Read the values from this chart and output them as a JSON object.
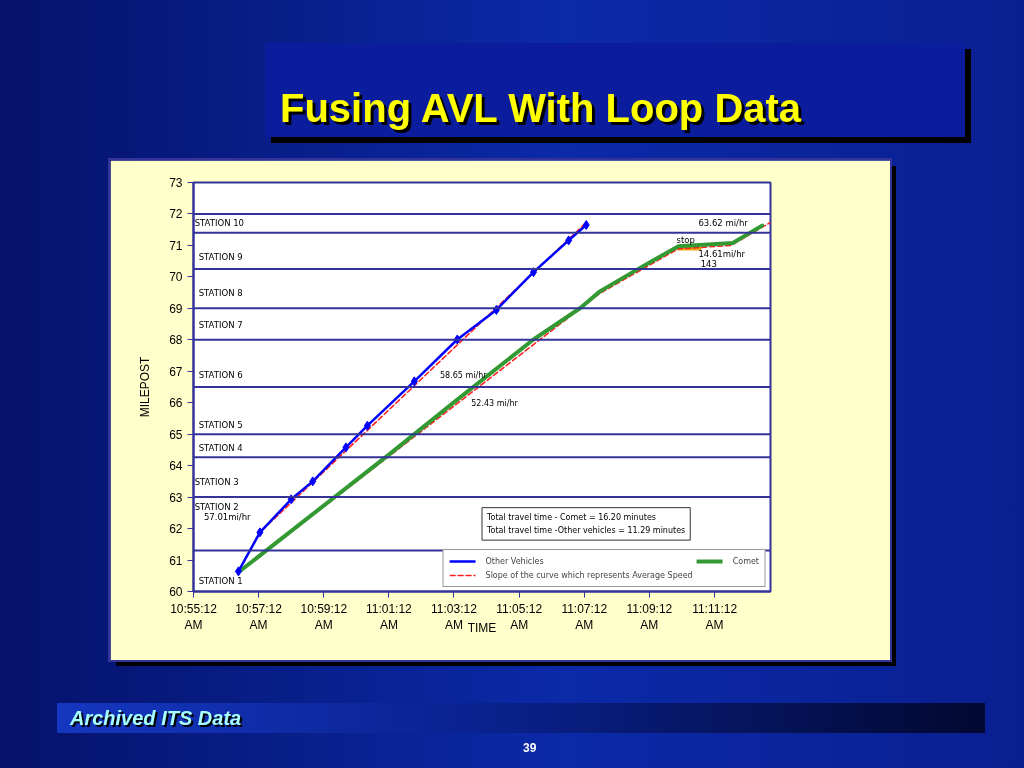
{
  "chart_data": {
    "type": "line",
    "title": "Fusing AVL With Loop Data",
    "xlabel": "TIME",
    "ylabel": "MILEPOST",
    "xlim": [
      10.92,
      11.2153
    ],
    "ylim": [
      60,
      73
    ],
    "xticks": [
      {
        "value": 10.92,
        "label": "10:55:12 AM"
      },
      {
        "value": 10.9533,
        "label": "10:57:12 AM"
      },
      {
        "value": 10.9867,
        "label": "10:59:12 AM"
      },
      {
        "value": 11.02,
        "label": "11:01:12 AM"
      },
      {
        "value": 11.0533,
        "label": "11:03:12 AM"
      },
      {
        "value": 11.0867,
        "label": "11:05:12 AM"
      },
      {
        "value": 11.12,
        "label": "11:07:12 AM"
      },
      {
        "value": 11.1533,
        "label": "11:09:12 AM"
      },
      {
        "value": 11.1867,
        "label": "11:11:12 AM"
      }
    ],
    "yticks": [
      60,
      61,
      62,
      63,
      64,
      65,
      66,
      67,
      68,
      69,
      70,
      71,
      72,
      73
    ],
    "legend": "bottom right",
    "series": [
      {
        "name": "Other Vehicles",
        "color": "#0000ff",
        "marker": "diamond",
        "x": [
          10.943,
          10.954,
          10.97,
          10.981,
          10.998,
          11.009,
          11.033,
          11.055,
          11.075,
          11.094,
          11.112,
          11.121
        ],
        "values": [
          60.64,
          61.88,
          62.93,
          63.5,
          64.58,
          65.27,
          66.68,
          68.01,
          68.95,
          70.15,
          71.16,
          71.65
        ]
      },
      {
        "name": "Slope of the curve which represents Average Speed",
        "color": "#ff2020",
        "line_style": "dashed",
        "x": [
          10.943,
          10.954,
          11.121
        ],
        "values": [
          60.64,
          61.88,
          71.73
        ]
      },
      {
        "name": "Comet",
        "color": "#339933",
        "x": [
          10.944,
          11.02,
          11.055,
          11.094,
          11.118,
          11.128,
          11.147,
          11.168,
          11.196,
          11.211
        ],
        "values": [
          60.66,
          64.35,
          66.1,
          68.01,
          69.01,
          69.54,
          70.23,
          70.97,
          71.08,
          71.63
        ]
      },
      {
        "color": "#ff2020",
        "line_style": "dashed",
        "x": [
          10.944,
          11.128,
          11.168,
          11.195,
          11.215
        ],
        "values": [
          60.65,
          69.48,
          70.89,
          71.0,
          71.72
        ]
      },
      {
        "color": "#e8a317",
        "x": [
          11.168,
          11.179
        ],
        "values": [
          70.9,
          70.9
        ]
      }
    ],
    "ref_lines": [
      {
        "axis": "y",
        "value": 72.0,
        "color": "#333399"
      },
      {
        "axis": "y",
        "value": 71.4,
        "color": "#333399"
      },
      {
        "axis": "y",
        "value": 70.25,
        "color": "#333399"
      },
      {
        "axis": "y",
        "value": 69.0,
        "color": "#333399"
      },
      {
        "axis": "y",
        "value": 68.0,
        "color": "#333399"
      },
      {
        "axis": "y",
        "value": 66.5,
        "color": "#333399"
      },
      {
        "axis": "y",
        "value": 65.0,
        "color": "#333399"
      },
      {
        "axis": "y",
        "value": 64.27,
        "color": "#333399"
      },
      {
        "axis": "y",
        "value": 63.0,
        "color": "#333399"
      },
      {
        "axis": "y",
        "value": 61.3,
        "color": "#333399"
      }
    ],
    "annotations": [
      "Total travel time - Comet = 16.20 minutes",
      "Total travel time -Other vehicles = 11.29 minutes",
      "Archived ITS Data",
      "39",
      "STATION 10",
      "STATION 9",
      "STATION 8",
      "STATION 7",
      "STATION 6",
      "STATION 5",
      "STATION 4",
      "STATION 3",
      "STATION  2",
      "57.01mi/hr",
      "STATION 1",
      "63.62 mi/hr",
      "stop",
      "14.61mi/hr",
      "143",
      {
        "text": "58.65 mi/hr",
        "x": 11.039,
        "y": 66.88
      },
      {
        "text": "52.43 mi/hr",
        "x": 11.055,
        "y": 65.98
      }
    ]
  }
}
